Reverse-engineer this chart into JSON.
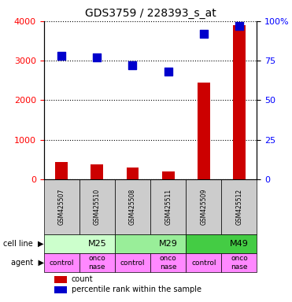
{
  "title": "GDS3759 / 228393_s_at",
  "samples": [
    "GSM425507",
    "GSM425510",
    "GSM425508",
    "GSM425511",
    "GSM425509",
    "GSM425512"
  ],
  "counts": [
    430,
    380,
    290,
    190,
    2450,
    3900
  ],
  "percentiles": [
    78,
    77,
    72,
    68,
    92,
    97
  ],
  "cell_lines": [
    {
      "label": "M25",
      "span": [
        0,
        2
      ],
      "color": "#ccffcc"
    },
    {
      "label": "M29",
      "span": [
        2,
        4
      ],
      "color": "#99ee99"
    },
    {
      "label": "M49",
      "span": [
        4,
        6
      ],
      "color": "#44cc44"
    }
  ],
  "agents": [
    "control",
    "onconase",
    "control",
    "onconase",
    "control",
    "onconase"
  ],
  "agent_color": "#ff88ff",
  "bar_color": "#cc0000",
  "dot_color": "#0000cc",
  "ylabel_left": "",
  "ylabel_right": "",
  "ylim_left": [
    0,
    4000
  ],
  "ylim_right": [
    0,
    100
  ],
  "yticks_left": [
    0,
    1000,
    2000,
    3000,
    4000
  ],
  "yticks_right": [
    0,
    25,
    50,
    75,
    100
  ],
  "ytick_labels_right": [
    "0",
    "25",
    "50",
    "75",
    "100%"
  ],
  "sample_bg_color": "#cccccc",
  "grid_color": "#000000",
  "bar_width": 0.35,
  "dot_size": 60
}
